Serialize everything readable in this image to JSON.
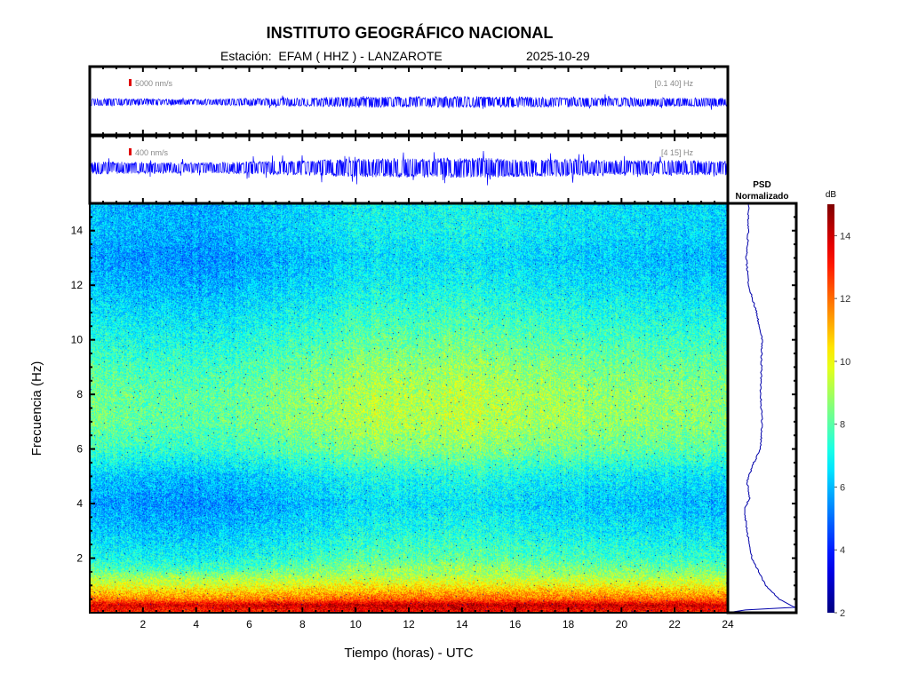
{
  "header": {
    "title": "INSTITUTO GEOGRÁFICO NACIONAL",
    "station": "Estación:  EFAM ( HHZ ) - LANZAROTE",
    "date": "2025-10-29"
  },
  "traces": [
    {
      "scale_label": "5000 nm/s",
      "band_label": "[0.1 40] Hz",
      "color": "#0000ff"
    },
    {
      "scale_label": "400 nm/s",
      "band_label": "[4 15] Hz",
      "color": "#0000ff"
    }
  ],
  "psd_panel": {
    "title_line1": "PSD",
    "title_line2": "Normalizado"
  },
  "colorbar": {
    "label": "dB",
    "range": [
      2,
      15
    ],
    "ticks": [
      2,
      4,
      6,
      8,
      10,
      12,
      14
    ],
    "colormap": "jet"
  },
  "chart_data": {
    "type": "heatmap",
    "title": "INSTITUTO GEOGRÁFICO NACIONAL",
    "xlabel": "Tiempo (horas) - UTC",
    "ylabel": "Frecuencia  (Hz)",
    "xlim": [
      0,
      24
    ],
    "ylim": [
      0,
      15
    ],
    "xticks": [
      2,
      4,
      6,
      8,
      10,
      12,
      14,
      16,
      18,
      20,
      22,
      24
    ],
    "yticks": [
      2,
      4,
      6,
      8,
      10,
      12,
      14
    ],
    "mean_db_profile": {
      "freq_hz": [
        0,
        0.3,
        0.5,
        1,
        1.5,
        2,
        3,
        4,
        5,
        6,
        7,
        8,
        9,
        10,
        11,
        12,
        13,
        14,
        15
      ],
      "db": [
        13,
        14,
        12,
        10,
        8.5,
        7.5,
        6.6,
        6.0,
        6.6,
        8.0,
        8.6,
        8.6,
        8.2,
        7.6,
        7.0,
        6.4,
        6.0,
        6.4,
        6.4
      ]
    },
    "time_activity": {
      "hours": [
        0,
        4,
        8,
        10,
        14,
        16,
        20,
        24
      ],
      "db_offset": [
        -0.3,
        -0.6,
        0,
        0.5,
        0.7,
        0.5,
        0.1,
        0
      ]
    },
    "psd_normalized": {
      "freq_hz": [
        0,
        0.1,
        0.2,
        0.5,
        1,
        2,
        3,
        3.8,
        4.2,
        4.8,
        5.5,
        6,
        7,
        8,
        9,
        10,
        11,
        12,
        13,
        14,
        15
      ],
      "value": [
        0.0,
        0.25,
        0.98,
        0.75,
        0.55,
        0.35,
        0.28,
        0.24,
        0.32,
        0.28,
        0.38,
        0.48,
        0.5,
        0.48,
        0.49,
        0.5,
        0.42,
        0.3,
        0.27,
        0.3,
        0.3
      ]
    }
  }
}
